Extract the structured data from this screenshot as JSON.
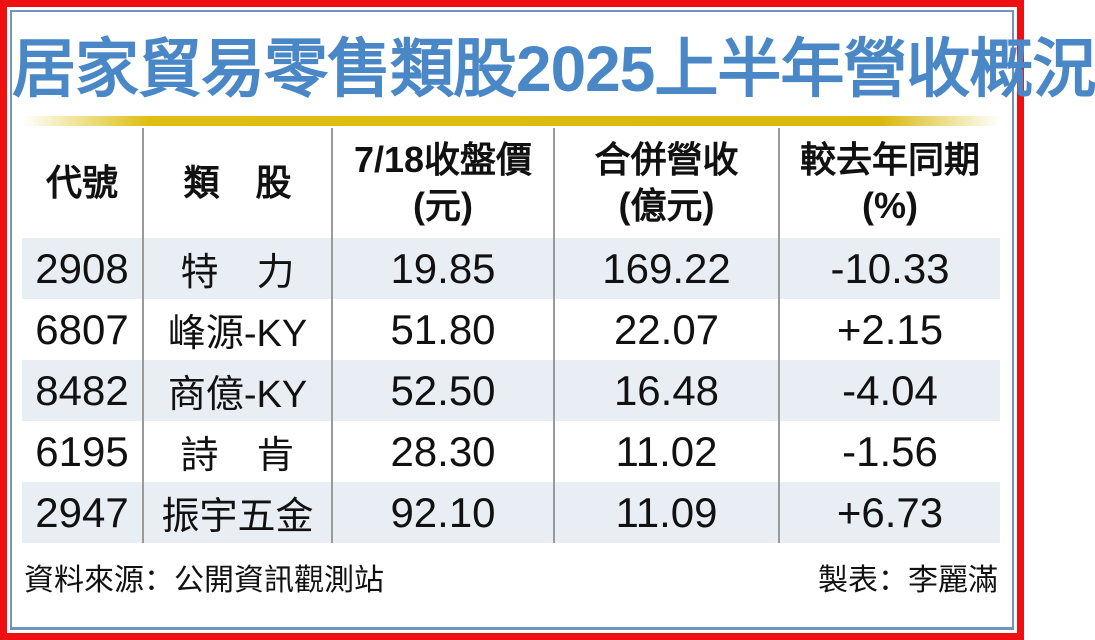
{
  "title": "居家貿易零售類股2025上半年營收概況",
  "colors": {
    "outer_border": "#ed0f12",
    "inner_frame": "#7193bc",
    "title_blue": "#4a87c6",
    "gold_bar": "#debe10",
    "row_shade": "#e9eef5",
    "divider_gray": "#9a9a9a",
    "text": "#111111"
  },
  "table": {
    "columns": [
      {
        "line1": "代號",
        "line2": ""
      },
      {
        "line1": "類　股",
        "line2": ""
      },
      {
        "line1": "7/18收盤價",
        "line2": "(元)"
      },
      {
        "line1": "合併營收",
        "line2": "(億元)"
      },
      {
        "line1": "較去年同期",
        "line2": "(%)"
      }
    ],
    "rows": [
      {
        "code": "2908",
        "name": "特　力",
        "price": "19.85",
        "revenue": "169.22",
        "yoy": "-10.33"
      },
      {
        "code": "6807",
        "name": "峰源-KY",
        "price": "51.80",
        "revenue": "22.07",
        "yoy": "+2.15"
      },
      {
        "code": "8482",
        "name": "商億-KY",
        "price": "52.50",
        "revenue": "16.48",
        "yoy": "-4.04"
      },
      {
        "code": "6195",
        "name": "詩　肯",
        "price": "28.30",
        "revenue": "11.02",
        "yoy": "-1.56"
      },
      {
        "code": "2947",
        "name": "振宇五金",
        "price": "92.10",
        "revenue": "11.09",
        "yoy": "+6.73"
      }
    ]
  },
  "footer": {
    "source": "資料來源：公開資訊觀測站",
    "credit": "製表：李麗滿"
  },
  "chart_data": {
    "type": "table",
    "title": "居家貿易零售類股2025上半年營收概況",
    "columns": [
      "代號",
      "類股",
      "7/18收盤價(元)",
      "合併營收(億元)",
      "較去年同期(%)"
    ],
    "rows": [
      [
        "2908",
        "特力",
        19.85,
        169.22,
        -10.33
      ],
      [
        "6807",
        "峰源-KY",
        51.8,
        22.07,
        2.15
      ],
      [
        "8482",
        "商億-KY",
        52.5,
        16.48,
        -4.04
      ],
      [
        "6195",
        "詩肯",
        28.3,
        11.02,
        -1.56
      ],
      [
        "2947",
        "振宇五金",
        92.1,
        11.09,
        6.73
      ]
    ],
    "source": "公開資訊觀測站",
    "credit": "李麗滿"
  }
}
